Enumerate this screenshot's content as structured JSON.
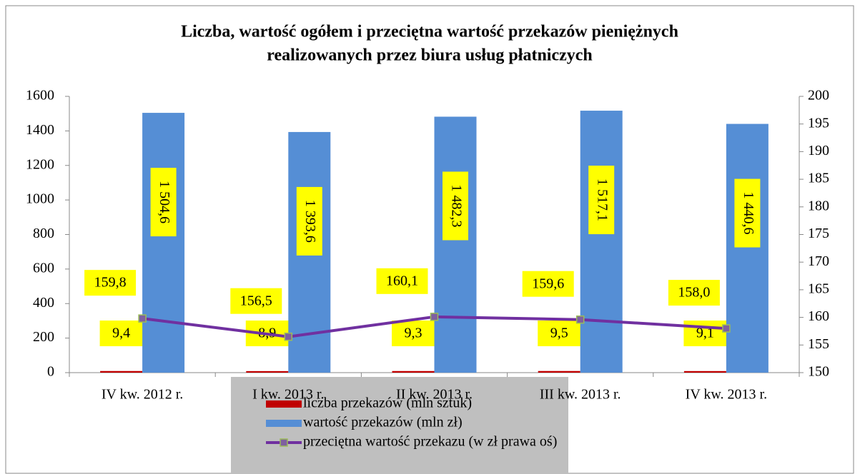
{
  "chart_data": {
    "type": "bar-line",
    "title": [
      "Liczba, wartość ogółem i przeciętna wartość przekazów pieniężnych",
      "realizowanych przez biura usług płatniczych"
    ],
    "categories": [
      "IV kw. 2012 r.",
      "I kw. 2013 r.",
      "II kw. 2013 r.",
      "III kw. 2013 r.",
      "IV kw. 2013 r."
    ],
    "series": [
      {
        "name": "liczba przekazów (mln sztuk)",
        "type": "bar",
        "color": "#c00000",
        "values": [
          9.4,
          8.9,
          9.3,
          9.5,
          9.1
        ],
        "value_labels": [
          "9,4",
          "8,9",
          "9,3",
          "9,5",
          "9,1"
        ]
      },
      {
        "name": "wartość przekazów (mln zł)",
        "type": "bar",
        "color": "#558ed5",
        "values": [
          1504.6,
          1393.6,
          1482.3,
          1517.1,
          1440.6
        ],
        "value_labels": [
          "1 504,6",
          "1 393,6",
          "1 482,3",
          "1 517,1",
          "1 440,6"
        ]
      },
      {
        "name": "przeciętna wartość przekazu (w zł prawa oś)",
        "type": "line",
        "axis": "y2",
        "color": "#7030a0",
        "marker_color": "#7f60a0",
        "values": [
          159.8,
          156.5,
          160.1,
          159.6,
          158.0
        ],
        "value_labels": [
          "159,8",
          "156,5",
          "160,1",
          "159,6",
          "158,0"
        ]
      }
    ],
    "ylim": [
      0,
      1600
    ],
    "yticks": [
      0,
      200,
      400,
      600,
      800,
      1000,
      1200,
      1400,
      1600
    ],
    "y2lim": [
      150,
      200
    ],
    "y2ticks": [
      150,
      155,
      160,
      165,
      170,
      175,
      180,
      185,
      190,
      195,
      200
    ],
    "legend": "bottom"
  }
}
